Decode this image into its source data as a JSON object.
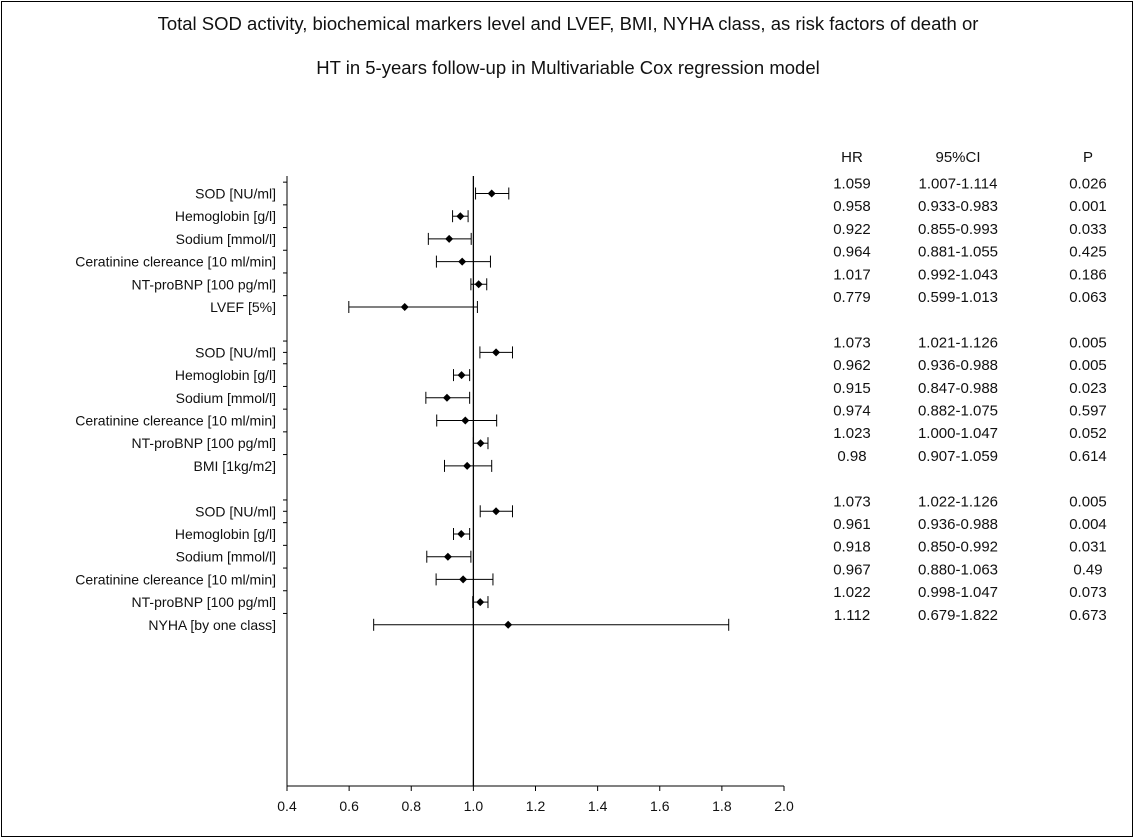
{
  "title_line1": "Total SOD activity, biochemical markers level and LVEF, BMI, NYHA class, as risk factors of death or",
  "title_line2": "HT in 5-years follow-up in Multivariable Cox regression model",
  "columns": {
    "hr": "HR",
    "ci": "95%CI",
    "p": "P"
  },
  "chart_data": {
    "type": "forest",
    "xlim": [
      0.4,
      2.0
    ],
    "x_ticks": [
      "0.4",
      "0.6",
      "0.8",
      "1.0",
      "1.2",
      "1.4",
      "1.6",
      "1.8",
      "2.0"
    ],
    "reference_line": 1.0,
    "models": [
      {
        "rows": [
          {
            "label": "SOD [NU/ml]",
            "hr": 1.059,
            "lo": 1.007,
            "hi": 1.114,
            "hr_text": "1.059",
            "ci_text": "1.007-1.114",
            "p_text": "0.026"
          },
          {
            "label": "Hemoglobin [g/l]",
            "hr": 0.958,
            "lo": 0.933,
            "hi": 0.983,
            "hr_text": "0.958",
            "ci_text": "0.933-0.983",
            "p_text": "0.001"
          },
          {
            "label": "Sodium [mmol/l]",
            "hr": 0.922,
            "lo": 0.855,
            "hi": 0.993,
            "hr_text": "0.922",
            "ci_text": "0.855-0.993",
            "p_text": "0.033"
          },
          {
            "label": "Ceratinine clereance [10 ml/min]",
            "hr": 0.964,
            "lo": 0.881,
            "hi": 1.055,
            "hr_text": "0.964",
            "ci_text": "0.881-1.055",
            "p_text": "0.425"
          },
          {
            "label": "NT-proBNP [100 pg/ml]",
            "hr": 1.017,
            "lo": 0.992,
            "hi": 1.043,
            "hr_text": "1.017",
            "ci_text": "0.992-1.043",
            "p_text": "0.186"
          },
          {
            "label": "LVEF [5%]",
            "hr": 0.779,
            "lo": 0.599,
            "hi": 1.013,
            "hr_text": "0.779",
            "ci_text": "0.599-1.013",
            "p_text": "0.063"
          }
        ]
      },
      {
        "rows": [
          {
            "label": "SOD [NU/ml]",
            "hr": 1.073,
            "lo": 1.021,
            "hi": 1.126,
            "hr_text": "1.073",
            "ci_text": "1.021-1.126",
            "p_text": "0.005"
          },
          {
            "label": "Hemoglobin [g/l]",
            "hr": 0.962,
            "lo": 0.936,
            "hi": 0.988,
            "hr_text": "0.962",
            "ci_text": "0.936-0.988",
            "p_text": "0.005"
          },
          {
            "label": "Sodium [mmol/l]",
            "hr": 0.915,
            "lo": 0.847,
            "hi": 0.988,
            "hr_text": "0.915",
            "ci_text": "0.847-0.988",
            "p_text": "0.023"
          },
          {
            "label": "Ceratinine clereance [10 ml/min]",
            "hr": 0.974,
            "lo": 0.882,
            "hi": 1.075,
            "hr_text": "0.974",
            "ci_text": "0.882-1.075",
            "p_text": "0.597"
          },
          {
            "label": "NT-proBNP [100 pg/ml]",
            "hr": 1.023,
            "lo": 1.0,
            "hi": 1.047,
            "hr_text": "1.023",
            "ci_text": "1.000-1.047",
            "p_text": "0.052"
          },
          {
            "label": "BMI [1kg/m2]",
            "hr": 0.98,
            "lo": 0.907,
            "hi": 1.059,
            "hr_text": "0.98",
            "ci_text": "0.907-1.059",
            "p_text": "0.614"
          }
        ]
      },
      {
        "rows": [
          {
            "label": "SOD [NU/ml]",
            "hr": 1.073,
            "lo": 1.022,
            "hi": 1.126,
            "hr_text": "1.073",
            "ci_text": "1.022-1.126",
            "p_text": "0.005"
          },
          {
            "label": "Hemoglobin [g/l]",
            "hr": 0.961,
            "lo": 0.936,
            "hi": 0.988,
            "hr_text": "0.961",
            "ci_text": "0.936-0.988",
            "p_text": "0.004"
          },
          {
            "label": "Sodium [mmol/l]",
            "hr": 0.918,
            "lo": 0.85,
            "hi": 0.992,
            "hr_text": "0.918",
            "ci_text": "0.850-0.992",
            "p_text": "0.031"
          },
          {
            "label": "Ceratinine clereance [10 ml/min]",
            "hr": 0.967,
            "lo": 0.88,
            "hi": 1.063,
            "hr_text": "0.967",
            "ci_text": "0.880-1.063",
            "p_text": "0.49"
          },
          {
            "label": "NT-proBNP [100 pg/ml]",
            "hr": 1.022,
            "lo": 0.998,
            "hi": 1.047,
            "hr_text": "1.022",
            "ci_text": "0.998-1.047",
            "p_text": "0.073"
          },
          {
            "label": "NYHA [by one class]",
            "hr": 1.112,
            "lo": 0.679,
            "hi": 1.822,
            "hr_text": "1.112",
            "ci_text": "0.679-1.822",
            "p_text": "0.673"
          }
        ]
      }
    ]
  }
}
